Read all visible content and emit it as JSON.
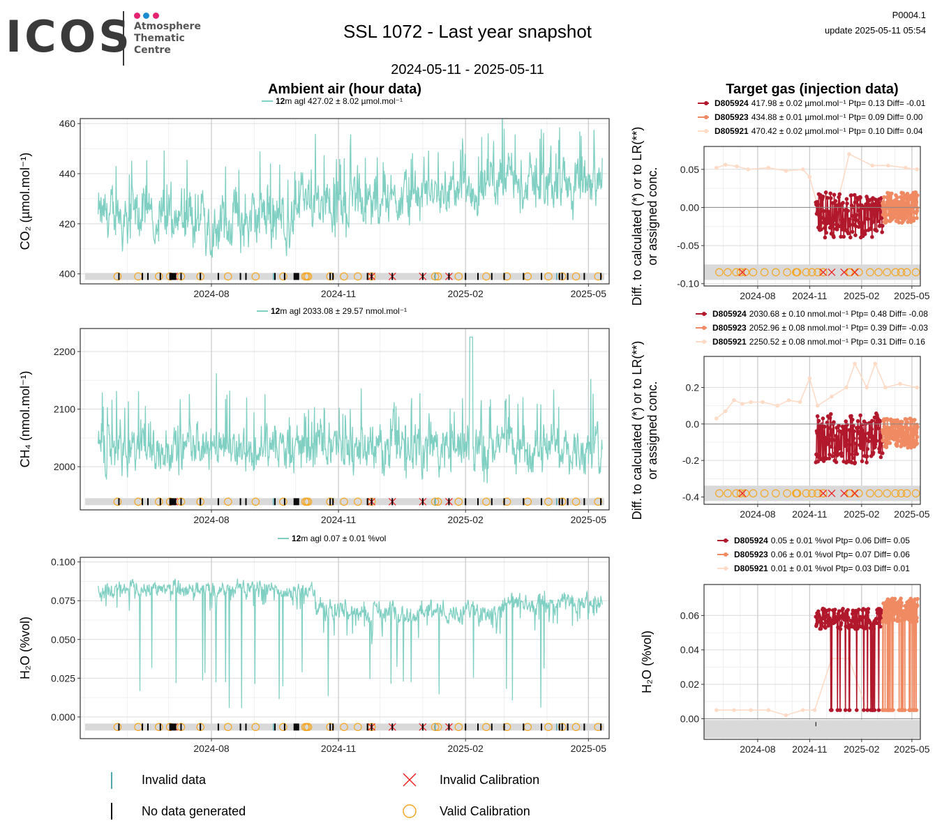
{
  "header": {
    "logo_text": "ICOS",
    "logo_sub": [
      "Atmosphere",
      "Thematic",
      "Centre"
    ],
    "title": "SSL 1072 - Last year snapshot",
    "period": "2024-05-11 - 2025-05-11",
    "code": "P0004.1",
    "update": "update  2025-05-11 05:54",
    "ambient_title": "Ambient air (hour data)",
    "target_title": "Target gas (injection data)"
  },
  "colors": {
    "ambient": "#7fcfc2",
    "D805924": "#b2182b",
    "D805923": "#ef8a62",
    "D805921": "#fddbc7",
    "invalid_cal": "#ee2222",
    "valid_cal": "#f5a623",
    "flag_band": "#d9d9d9"
  },
  "ambient_legends": [
    {
      "height": "12",
      "text": "m agl 427.02 ± 8.02 µmol.mol⁻¹"
    },
    {
      "height": "12",
      "text": "m agl 2033.08 ± 29.57 nmol.mol⁻¹"
    },
    {
      "height": "12",
      "text": "m agl 0.07 ± 0.01 %vol"
    }
  ],
  "target_legends": [
    [
      {
        "id": "D805924",
        "text": "417.98 ± 0.02 µmol.mol⁻¹ Ptp= 0.13 Diff= -0.01"
      },
      {
        "id": "D805923",
        "text": "434.88 ± 0.01 µmol.mol⁻¹ Ptp= 0.09 Diff= 0.00"
      },
      {
        "id": "D805921",
        "text": "470.42 ± 0.02 µmol.mol⁻¹ Ptp= 0.10 Diff= 0.04"
      }
    ],
    [
      {
        "id": "D805924",
        "text": "2030.68 ± 0.10 nmol.mol⁻¹ Ptp= 0.48 Diff= -0.08"
      },
      {
        "id": "D805923",
        "text": "2052.96 ± 0.08 nmol.mol⁻¹ Ptp= 0.39 Diff= -0.03"
      },
      {
        "id": "D805921",
        "text": "2250.52 ± 0.08 nmol.mol⁻¹ Ptp= 0.31 Diff= 0.16"
      }
    ],
    [
      {
        "id": "D805924",
        "text": "0.05 ± 0.01 %vol Ptp= 0.06 Diff= 0.05"
      },
      {
        "id": "D805923",
        "text": "0.06 ± 0.01 %vol Ptp= 0.07 Diff= 0.06"
      },
      {
        "id": "D805921",
        "text": "0.01 ± 0.01 %vol Ptp= 0.03 Diff= 0.01"
      }
    ]
  ],
  "bottom_legend": {
    "invalid_data": "Invalid data",
    "invalid_calibration": "Invalid Calibration",
    "no_data": "No data generated",
    "valid_calibration": "Valid Calibration"
  },
  "chart_data": [
    {
      "type": "line",
      "panel": "ambient-co2",
      "ylabel": "CO₂ (µmol.mol⁻¹)",
      "ylim": [
        396,
        462
      ],
      "yticks": [
        400,
        420,
        440,
        460
      ],
      "x_ticks": [
        "2024-08",
        "2024-11",
        "2025-02",
        "2025-05"
      ],
      "x_range": [
        "2024-05-11",
        "2025-05-11"
      ],
      "series": [
        {
          "name": "12m agl",
          "segments": [
            {
              "from": "2024-05-11",
              "to": "2024-07-15",
              "mean": 423,
              "amp": 12
            },
            {
              "from": "2024-07-15",
              "to": "2024-10-01",
              "mean": 421,
              "amp": 14
            },
            {
              "from": "2024-10-01",
              "to": "2024-12-01",
              "mean": 428,
              "amp": 12
            },
            {
              "from": "2024-12-01",
              "to": "2025-02-15",
              "mean": 431,
              "amp": 10
            },
            {
              "from": "2025-02-15",
              "to": "2025-05-11",
              "mean": 436,
              "amp": 12
            }
          ]
        }
      ],
      "grid": true
    },
    {
      "type": "line",
      "panel": "ambient-ch4",
      "ylabel": "CH₄ (nmol.mol⁻¹)",
      "ylim": [
        1925,
        2240
      ],
      "yticks": [
        2000,
        2100,
        2200
      ],
      "x_ticks": [
        "2024-08",
        "2024-11",
        "2025-02",
        "2025-05"
      ],
      "series": [
        {
          "name": "12m agl",
          "mean": 2033,
          "amp": 50,
          "peak": {
            "date": "2025-02-05",
            "value": 2225
          }
        }
      ],
      "grid": true
    },
    {
      "type": "line",
      "panel": "ambient-h2o",
      "ylabel": "H₂O (%vol)",
      "ylim": [
        -0.014,
        0.103
      ],
      "yticks": [
        0.0,
        0.025,
        0.05,
        0.075,
        0.1
      ],
      "ytick_labels": [
        "0.000",
        "0.025",
        "0.050",
        "0.075",
        "0.100"
      ],
      "x_ticks": [
        "2024-08",
        "2024-11",
        "2025-02",
        "2025-05"
      ],
      "series": [
        {
          "name": "12m agl",
          "segments": [
            {
              "from": "2024-05-11",
              "to": "2024-10-15",
              "mean": 0.082,
              "amp": 0.006
            },
            {
              "from": "2024-10-15",
              "to": "2025-03-01",
              "mean": 0.068,
              "amp": 0.008
            },
            {
              "from": "2025-03-01",
              "to": "2025-05-11",
              "mean": 0.074,
              "amp": 0.007
            }
          ]
        }
      ],
      "grid": true
    },
    {
      "type": "scatter",
      "panel": "target-co2",
      "ylabel": "Diff. to calculated (*) or to LR(**) or assigned conc.",
      "ylim": [
        -0.103,
        0.08
      ],
      "yticks": [
        -0.1,
        -0.05,
        0.0,
        0.05
      ],
      "ytick_labels": [
        "-0.10",
        "-0.05",
        "0.00",
        "0.05"
      ],
      "x_ticks": [
        "2024-08",
        "2024-11",
        "2025-02",
        "2025-05"
      ],
      "series": [
        {
          "name": "D805921",
          "points": [
            [
              "2024-05-20",
              0.052
            ],
            [
              "2024-06-05",
              0.056
            ],
            [
              "2024-06-25",
              0.054
            ],
            [
              "2024-07-15",
              0.05
            ],
            [
              "2024-08-20",
              0.052
            ],
            [
              "2024-09-20",
              0.048
            ],
            [
              "2024-10-20",
              0.05
            ],
            [
              "2024-11-01",
              0.04
            ],
            [
              "2024-11-25",
              -0.025
            ],
            [
              "2024-12-20",
              0.005
            ],
            [
              "2025-01-10",
              0.07
            ],
            [
              "2025-02-20",
              0.055
            ],
            [
              "2025-03-20",
              0.055
            ],
            [
              "2025-04-20",
              0.052
            ],
            [
              "2025-05-10",
              0.05
            ]
          ]
        },
        {
          "name": "D805924",
          "from": "2024-11-12",
          "to": "2025-03-10",
          "mean": -0.01,
          "amp": 0.03
        },
        {
          "name": "D805923",
          "from": "2025-03-10",
          "to": "2025-05-11",
          "mean": 0.0,
          "amp": 0.02
        }
      ],
      "grid": true
    },
    {
      "type": "scatter",
      "panel": "target-ch4",
      "ylabel": "Diff. to calculated (*) or to LR(**) or assigned conc.",
      "ylim": [
        -0.44,
        0.37
      ],
      "yticks": [
        -0.4,
        -0.2,
        0.0,
        0.2
      ],
      "ytick_labels": [
        "-0.4",
        "-0.2",
        "0.0",
        "0.2"
      ],
      "x_ticks": [
        "2024-08",
        "2024-11",
        "2025-02",
        "2025-05"
      ],
      "series": [
        {
          "name": "D805921",
          "points": [
            [
              "2024-05-20",
              0.03
            ],
            [
              "2024-06-05",
              0.07
            ],
            [
              "2024-06-20",
              0.13
            ],
            [
              "2024-07-05",
              0.11
            ],
            [
              "2024-07-20",
              0.12
            ],
            [
              "2024-08-10",
              0.12
            ],
            [
              "2024-09-05",
              0.1
            ],
            [
              "2024-09-25",
              0.13
            ],
            [
              "2024-10-15",
              0.12
            ],
            [
              "2024-11-01",
              0.25
            ],
            [
              "2024-11-15",
              0.1
            ],
            [
              "2024-12-10",
              0.15
            ],
            [
              "2025-01-05",
              0.2
            ],
            [
              "2025-01-20",
              0.33
            ],
            [
              "2025-02-10",
              0.2
            ],
            [
              "2025-02-25",
              0.33
            ],
            [
              "2025-03-15",
              0.2
            ],
            [
              "2025-04-10",
              0.22
            ],
            [
              "2025-05-10",
              0.2
            ]
          ]
        },
        {
          "name": "D805924",
          "from": "2024-11-12",
          "to": "2025-03-10",
          "mean": -0.08,
          "amp": 0.14
        },
        {
          "name": "D805923",
          "from": "2025-03-10",
          "to": "2025-05-11",
          "mean": -0.05,
          "amp": 0.08
        }
      ],
      "grid": true
    },
    {
      "type": "scatter",
      "panel": "target-h2o",
      "ylabel": "H₂O (%vol)",
      "ylim": [
        -0.012,
        0.078
      ],
      "yticks": [
        0.0,
        0.02,
        0.04,
        0.06
      ],
      "ytick_labels": [
        "0.00",
        "0.02",
        "0.04",
        "0.06"
      ],
      "x_ticks": [
        "2024-08",
        "2024-11",
        "2025-02",
        "2025-05"
      ],
      "series": [
        {
          "name": "D805921",
          "points": [
            [
              "2024-05-20",
              0.005
            ],
            [
              "2024-06-20",
              0.005
            ],
            [
              "2024-07-20",
              0.005
            ],
            [
              "2024-08-20",
              0.005
            ],
            [
              "2024-09-20",
              0.002
            ],
            [
              "2024-10-20",
              0.005
            ],
            [
              "2024-11-10",
              0.005
            ],
            [
              "2024-12-10",
              0.035
            ],
            [
              "2025-01-10",
              0.035
            ],
            [
              "2025-02-10",
              0.005
            ],
            [
              "2025-03-10",
              0.005
            ],
            [
              "2025-04-10",
              0.005
            ],
            [
              "2025-05-10",
              0.005
            ]
          ]
        },
        {
          "name": "D805924",
          "from": "2024-11-12",
          "to": "2025-03-10",
          "mean": 0.058,
          "amp": 0.006
        },
        {
          "name": "D805923",
          "from": "2025-03-10",
          "to": "2025-05-11",
          "mean": 0.063,
          "amp": 0.007
        }
      ],
      "grid": true
    }
  ],
  "flags": {
    "valid_calibration_dates": [
      "2024-05-25",
      "2024-06-09",
      "2024-06-24",
      "2024-07-02",
      "2024-07-10",
      "2024-07-24",
      "2024-08-13",
      "2024-09-02",
      "2024-09-22",
      "2024-10-08",
      "2024-10-09",
      "2024-10-10",
      "2024-10-26",
      "2024-11-05",
      "2024-11-15",
      "2024-11-25",
      "2025-01-10",
      "2025-01-12",
      "2025-01-27",
      "2025-02-16",
      "2025-03-03",
      "2025-03-18",
      "2025-04-02",
      "2025-04-12",
      "2025-04-22",
      "2025-05-08"
    ],
    "invalid_calibration_dates": [
      "2024-07-05",
      "2024-11-25",
      "2024-12-10",
      "2025-01-01",
      "2025-01-20"
    ],
    "no_data_dates": [
      "2024-05-26",
      "2024-06-12",
      "2024-06-16",
      "2024-06-25",
      "2024-07-02",
      "2024-07-03",
      "2024-07-04",
      "2024-07-05",
      "2024-07-06",
      "2024-07-10",
      "2024-07-24",
      "2024-08-06",
      "2024-08-22",
      "2024-08-26",
      "2024-09-16",
      "2024-09-23",
      "2024-09-30",
      "2024-10-01",
      "2024-10-02",
      "2024-10-03",
      "2024-10-26",
      "2024-10-28",
      "2024-11-22",
      "2024-11-25",
      "2024-12-10",
      "2025-01-01",
      "2025-01-20",
      "2025-02-01",
      "2025-02-10",
      "2025-02-20",
      "2025-03-01",
      "2025-03-15",
      "2025-03-28",
      "2025-04-10",
      "2025-04-12",
      "2025-04-16",
      "2025-04-28",
      "2025-05-10"
    ],
    "invalid_data_dates": [
      "2024-09-15",
      "2025-01-10",
      "2025-04-08"
    ]
  }
}
